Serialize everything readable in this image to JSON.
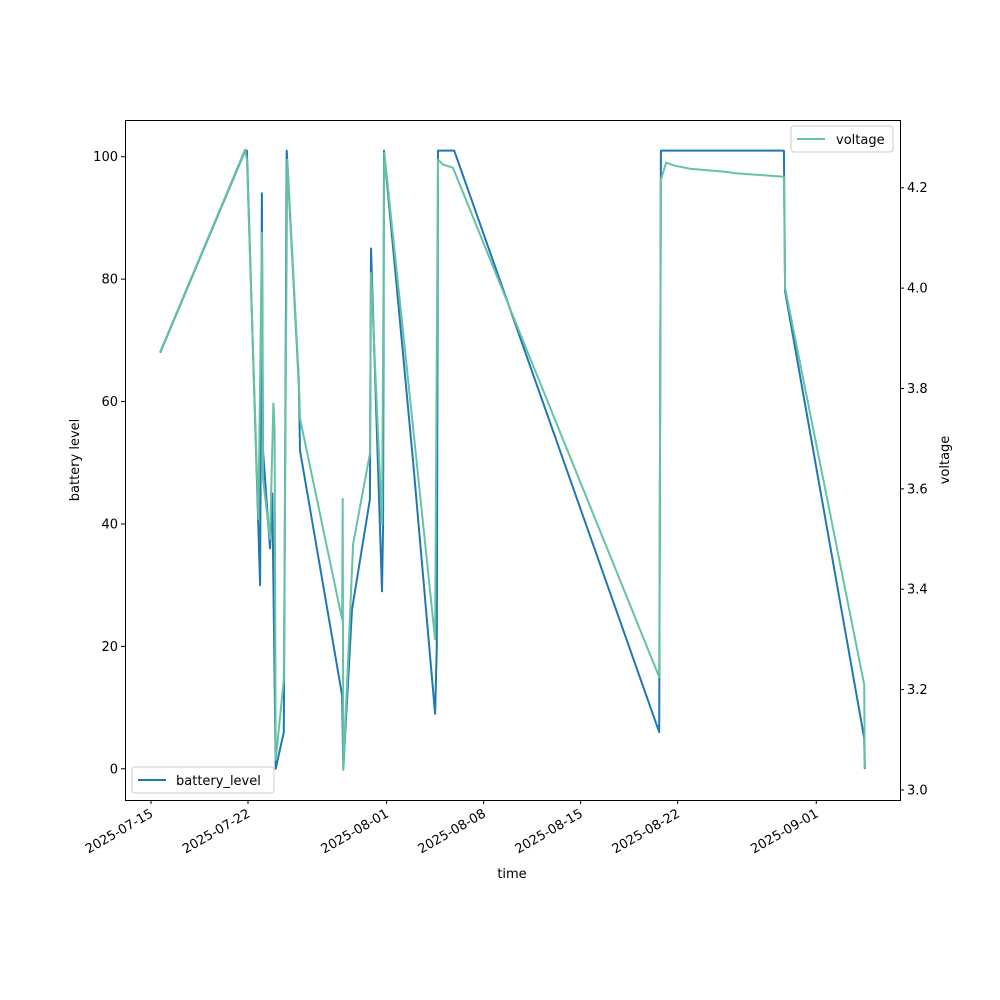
{
  "chart_data": {
    "type": "line",
    "title": "",
    "xlabel": "time",
    "ylabel": "battery level",
    "y2label": "voltage",
    "xlim": [
      "2025-07-13T03:00",
      "2025-09-07T01:00"
    ],
    "ylim": [
      -5.1,
      106
    ],
    "y2lim": [
      2.98,
      4.335
    ],
    "x_ticks": [
      "2025-07-15",
      "2025-07-22",
      "2025-08-01",
      "2025-08-08",
      "2025-08-15",
      "2025-08-22",
      "2025-09-01"
    ],
    "y_ticks": [
      0,
      20,
      40,
      60,
      80,
      100
    ],
    "y2_ticks": [
      "3.0",
      "3.2",
      "3.4",
      "3.6",
      "3.8",
      "4.0",
      "4.2"
    ],
    "grid": false,
    "series": [
      {
        "name": "battery_level",
        "axis": "left",
        "color": "#1f77b4",
        "legend": "lower-left",
        "x": [
          "2025-07-15T16:00",
          "2025-07-21T19:00",
          "2025-07-21T22:00",
          "2025-07-22T21:00",
          "2025-07-23T00:00",
          "2025-07-23T02:00",
          "2025-07-23T14:00",
          "2025-07-23T18:00",
          "2025-07-24T00:00",
          "2025-07-24T14:00",
          "2025-07-24T19:00",
          "2025-07-25T16:00",
          "2025-07-25T18:00",
          "2025-07-28T19:00",
          "2025-07-28T21:00",
          "2025-07-29T12:00",
          "2025-07-30T19:00",
          "2025-07-30T21:00",
          "2025-07-31T16:00",
          "2025-07-31T18:00",
          "2025-07-31T19:30",
          "2025-08-02T22:00",
          "2025-08-04T12:00",
          "2025-08-04T15:00",
          "2025-08-04T17:00",
          "2025-08-05T21:00",
          "2025-08-20T16:00",
          "2025-08-20T19:00",
          "2025-08-29T16:00",
          "2025-08-29T18:00",
          "2025-09-04T11:00",
          "2025-09-04T12:00"
        ],
        "values": [
          68,
          101,
          101,
          30,
          94,
          52,
          36,
          45,
          0,
          6,
          101,
          63,
          52,
          12,
          0,
          26,
          44,
          85,
          29,
          40,
          101,
          50,
          9,
          20,
          101,
          101,
          6,
          101,
          101,
          78,
          5,
          0
        ]
      },
      {
        "name": "voltage",
        "axis": "right",
        "color": "#66c2a5",
        "legend": "upper-right",
        "x": [
          "2025-07-15T16:00",
          "2025-07-21T19:00",
          "2025-07-21T22:00",
          "2025-07-22T18:00",
          "2025-07-23T00:00",
          "2025-07-23T02:00",
          "2025-07-23T14:00",
          "2025-07-23T20:00",
          "2025-07-23T22:00",
          "2025-07-24T00:00",
          "2025-07-24T14:00",
          "2025-07-24T20:00",
          "2025-07-25T16:00",
          "2025-07-25T18:00",
          "2025-07-28T19:00",
          "2025-07-28T20:00",
          "2025-07-28T21:00",
          "2025-07-29T14:00",
          "2025-07-30T19:00",
          "2025-07-30T21:00",
          "2025-07-31T16:00",
          "2025-07-31T20:00",
          "2025-08-02T22:00",
          "2025-08-04T12:00",
          "2025-08-04T15:00",
          "2025-08-04T17:00",
          "2025-08-05T02:00",
          "2025-08-05T19:00",
          "2025-08-20T16:00",
          "2025-08-20T19:00",
          "2025-08-21T04:00",
          "2025-08-21T19:00",
          "2025-08-22T21:00",
          "2025-08-25T10:00",
          "2025-08-26T04:00",
          "2025-08-29T16:00",
          "2025-08-29T18:00",
          "2025-09-04T11:00",
          "2025-09-04T12:00"
        ],
        "values": [
          3.873,
          4.276,
          4.256,
          3.54,
          4.11,
          3.62,
          3.5,
          3.77,
          3.72,
          3.06,
          3.22,
          4.256,
          3.82,
          3.74,
          3.34,
          3.58,
          3.04,
          3.49,
          3.67,
          4.03,
          3.53,
          4.27,
          3.72,
          3.3,
          3.88,
          4.256,
          4.246,
          4.24,
          3.225,
          4.216,
          4.25,
          4.244,
          4.238,
          4.232,
          4.229,
          4.222,
          4.0,
          3.21,
          3.044
        ]
      }
    ]
  }
}
